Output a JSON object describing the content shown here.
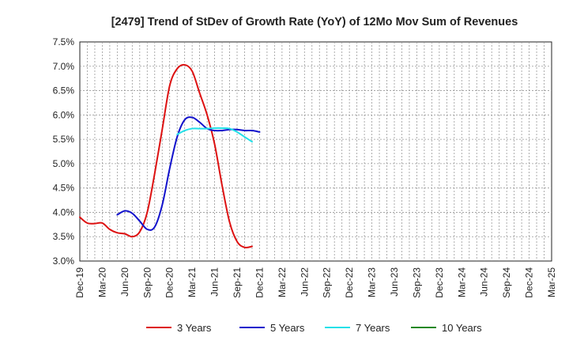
{
  "chart_data": {
    "type": "line",
    "title": "[2479]  Trend of StDev of Growth Rate (YoY) of 12Mo Mov Sum of Revenues",
    "xlabel": "",
    "ylabel": "",
    "x_ticks": [
      "Dec-19",
      "Mar-20",
      "Jun-20",
      "Sep-20",
      "Dec-20",
      "Mar-21",
      "Jun-21",
      "Sep-21",
      "Dec-21",
      "Mar-22",
      "Jun-22",
      "Sep-22",
      "Dec-22",
      "Mar-23",
      "Jun-23",
      "Sep-23",
      "Dec-23",
      "Mar-24",
      "Jun-24",
      "Sep-24",
      "Dec-24",
      "Mar-25"
    ],
    "y_ticks": [
      "3.0%",
      "3.5%",
      "4.0%",
      "4.5%",
      "5.0%",
      "5.5%",
      "6.0%",
      "6.5%",
      "7.0%",
      "7.5%"
    ],
    "ylim": [
      3.0,
      7.5
    ],
    "grid": true,
    "legend_position": "bottom",
    "series": [
      {
        "name": "3 Years",
        "color": "#dd1111",
        "points": [
          [
            0,
            3.9
          ],
          [
            1,
            3.78
          ],
          [
            2,
            3.77
          ],
          [
            3,
            3.78
          ],
          [
            4,
            3.65
          ],
          [
            5,
            3.58
          ],
          [
            6,
            3.56
          ],
          [
            7,
            3.5
          ],
          [
            8,
            3.6
          ],
          [
            9,
            4.0
          ],
          [
            10,
            4.8
          ],
          [
            11,
            5.7
          ],
          [
            12,
            6.6
          ],
          [
            13,
            6.95
          ],
          [
            14,
            7.03
          ],
          [
            15,
            6.9
          ],
          [
            16,
            6.45
          ],
          [
            17,
            6.0
          ],
          [
            18,
            5.4
          ],
          [
            19,
            4.55
          ],
          [
            20,
            3.8
          ],
          [
            21,
            3.4
          ],
          [
            22,
            3.28
          ],
          [
            23,
            3.3
          ]
        ]
      },
      {
        "name": "5 Years",
        "color": "#1111cc",
        "points": [
          [
            5,
            3.95
          ],
          [
            6,
            4.03
          ],
          [
            7,
            3.98
          ],
          [
            8,
            3.82
          ],
          [
            9,
            3.65
          ],
          [
            10,
            3.7
          ],
          [
            11,
            4.15
          ],
          [
            12,
            4.9
          ],
          [
            13,
            5.55
          ],
          [
            14,
            5.9
          ],
          [
            15,
            5.95
          ],
          [
            16,
            5.85
          ],
          [
            17,
            5.72
          ],
          [
            18,
            5.68
          ],
          [
            19,
            5.68
          ],
          [
            20,
            5.7
          ],
          [
            21,
            5.7
          ],
          [
            22,
            5.68
          ],
          [
            23,
            5.68
          ],
          [
            24,
            5.65
          ]
        ]
      },
      {
        "name": "7 Years",
        "color": "#22e0e8",
        "points": [
          [
            13,
            5.6
          ],
          [
            14,
            5.68
          ],
          [
            15,
            5.72
          ],
          [
            16,
            5.72
          ],
          [
            17,
            5.72
          ],
          [
            18,
            5.73
          ],
          [
            19,
            5.73
          ],
          [
            20,
            5.72
          ],
          [
            21,
            5.65
          ],
          [
            22,
            5.55
          ],
          [
            23,
            5.45
          ]
        ]
      },
      {
        "name": "10 Years",
        "color": "#228822",
        "points": []
      }
    ]
  }
}
